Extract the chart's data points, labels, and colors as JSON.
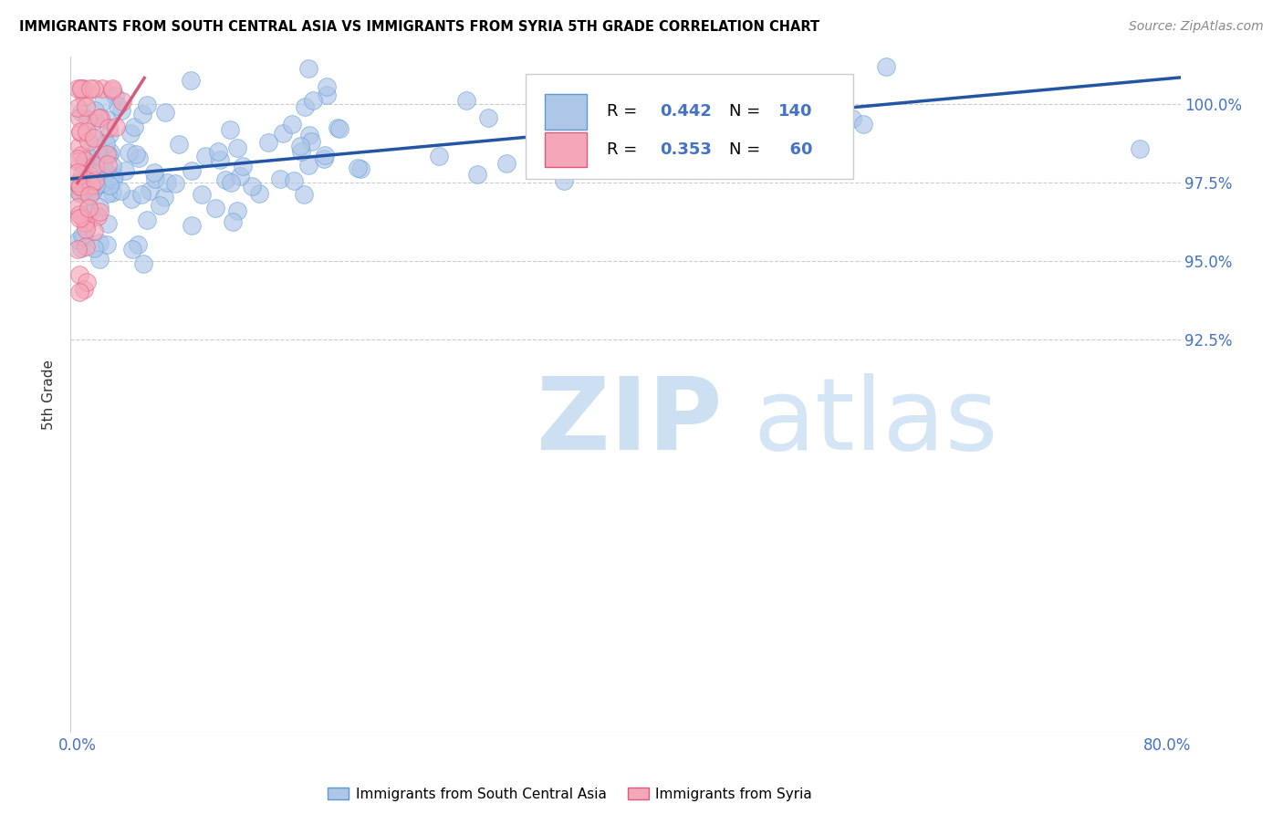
{
  "title_display": "IMMIGRANTS FROM SOUTH CENTRAL ASIA VS IMMIGRANTS FROM SYRIA 5TH GRADE CORRELATION CHART",
  "source": "Source: ZipAtlas.com",
  "ylabel": "5th Grade",
  "xlim": [
    -0.5,
    81.0
  ],
  "ylim": [
    80.0,
    101.5
  ],
  "x_ticks": [
    0.0,
    10.0,
    20.0,
    30.0,
    40.0,
    50.0,
    60.0,
    70.0,
    80.0
  ],
  "x_tick_labels": [
    "0.0%",
    "",
    "",
    "",
    "",
    "",
    "",
    "",
    "80.0%"
  ],
  "y_ticks": [
    92.5,
    95.0,
    97.5,
    100.0
  ],
  "y_tick_labels": [
    "92.5%",
    "95.0%",
    "97.5%",
    "100.0%"
  ],
  "blue_fill": "#aec6e8",
  "blue_edge": "#5b9bd5",
  "pink_fill": "#f4a7b9",
  "pink_edge": "#e05a7a",
  "line_blue_color": "#2255a4",
  "line_pink_color": "#d45b7a",
  "R_blue": 0.442,
  "N_blue": 140,
  "R_pink": 0.353,
  "N_pink": 60,
  "legend_label_blue": "Immigrants from South Central Asia",
  "legend_label_pink": "Immigrants from Syria",
  "watermark_zip": "ZIP",
  "watermark_atlas": "atlas",
  "tick_color": "#4472c4",
  "grid_color": "#cccccc",
  "ylabel_color": "#333333",
  "source_color": "#888888"
}
